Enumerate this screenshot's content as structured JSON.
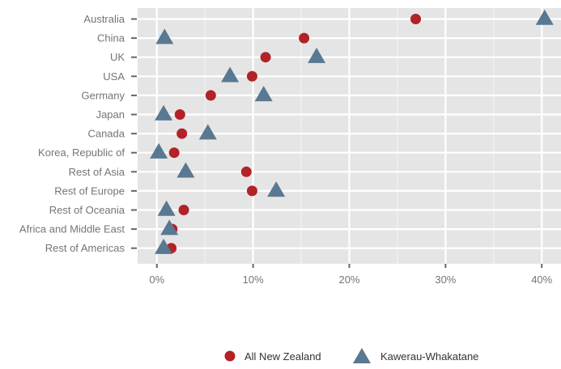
{
  "chart_data": {
    "type": "scatter",
    "title": "",
    "xlabel": "",
    "ylabel": "",
    "categories": [
      "Australia",
      "China",
      "UK",
      "USA",
      "Germany",
      "Japan",
      "Canada",
      "Korea, Republic of",
      "Rest of Asia",
      "Rest of Europe",
      "Rest of Oceania",
      "Africa and Middle East",
      "Rest of Americas"
    ],
    "x_ticks": [
      "0%",
      "10%",
      "20%",
      "30%",
      "40%"
    ],
    "xlim": [
      -2,
      42
    ],
    "grid": true,
    "legend_position": "bottom",
    "series": [
      {
        "name": "All New Zealand",
        "marker": "circle",
        "color": "#b22226",
        "values": [
          26.9,
          15.3,
          11.3,
          9.9,
          5.6,
          2.4,
          2.6,
          1.8,
          9.3,
          9.9,
          2.8,
          1.6,
          1.5
        ]
      },
      {
        "name": "Kawerau-Whakatane",
        "marker": "triangle",
        "color": "#597891",
        "values": [
          40.3,
          0.8,
          16.6,
          7.6,
          11.1,
          0.7,
          5.3,
          0.2,
          3.0,
          12.4,
          1.0,
          1.3,
          0.7
        ]
      }
    ]
  }
}
